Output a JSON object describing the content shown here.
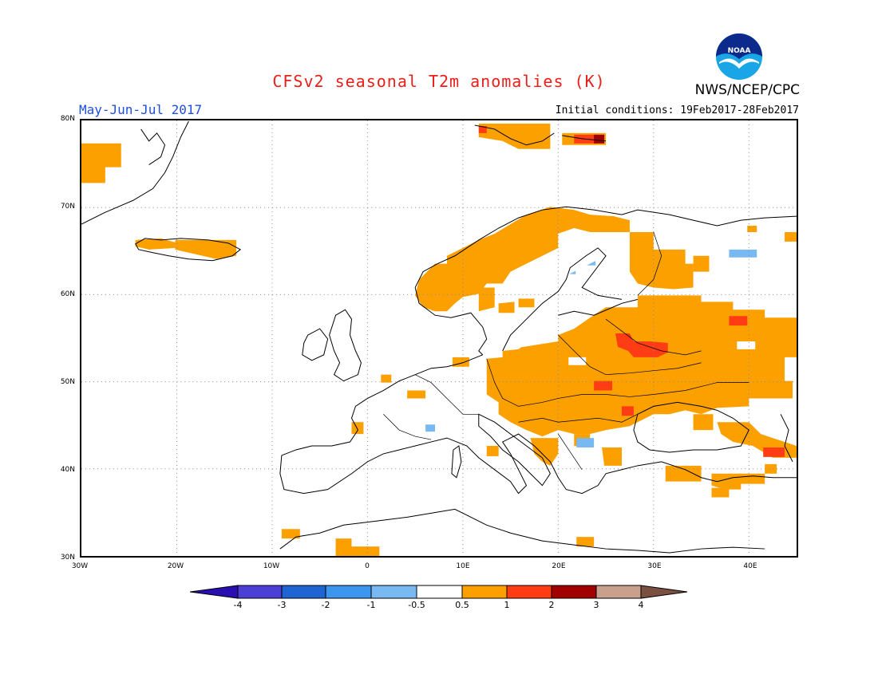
{
  "header": {
    "title": "CFSv2 seasonal T2m anomalies (K)",
    "agency": "NWS/NCEP/CPC",
    "logo_text": "NOAA",
    "season": "May-Jun-Jul 2017",
    "initial_conditions": "Initial conditions: 19Feb2017-28Feb2017"
  },
  "map": {
    "region": "Europe",
    "projection": "equirectangular",
    "lon_range": [
      -30,
      45
    ],
    "lat_range": [
      30,
      80
    ],
    "lat_labels": [
      "80N",
      "70N",
      "60N",
      "50N",
      "40N",
      "30N"
    ],
    "lon_labels": [
      "30W",
      "20W",
      "10W",
      "0",
      "10E",
      "20E",
      "30E",
      "40E"
    ],
    "gridlines": "dotted",
    "colors": {
      "land_outline": "#000000",
      "grid": "#888888"
    }
  },
  "colorbar": {
    "labels": [
      "-4",
      "-3",
      "-2",
      "-1",
      "-0.5",
      "0.5",
      "1",
      "2",
      "3",
      "4"
    ],
    "colors": [
      "#2a0fb0",
      "#4b3fd6",
      "#1e64d2",
      "#3c96ee",
      "#78b9f2",
      "#ffffff",
      "#fca000",
      "#ff3c14",
      "#a00000",
      "#c8a08c",
      "#7a5040"
    ]
  }
}
